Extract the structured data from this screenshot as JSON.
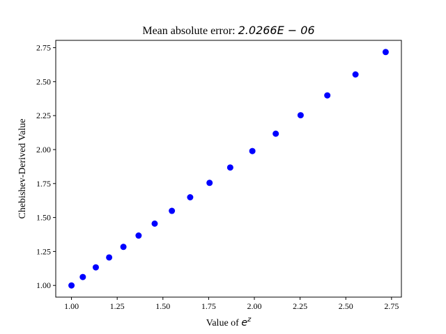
{
  "chart_data": {
    "type": "scatter",
    "title_text": "Mean absolute error: ",
    "title_math": "2.0266E − 06",
    "xlabel_text": "Value of ",
    "xlabel_math_base": "e",
    "xlabel_math_sup": "z",
    "ylabel": "Chebishev-Derived Value",
    "xlim": [
      0.914,
      2.804
    ],
    "ylim": [
      0.914,
      2.804
    ],
    "xticks": [
      1.0,
      1.25,
      1.5,
      1.75,
      2.0,
      2.25,
      2.5,
      2.75
    ],
    "yticks": [
      1.0,
      1.25,
      1.5,
      1.75,
      2.0,
      2.25,
      2.5,
      2.75
    ],
    "xtick_labels": [
      "1.00",
      "1.25",
      "1.50",
      "1.75",
      "2.00",
      "2.25",
      "2.50",
      "2.75"
    ],
    "ytick_labels": [
      "1.00",
      "1.25",
      "1.50",
      "1.75",
      "2.00",
      "2.25",
      "2.50",
      "2.75"
    ],
    "marker_color": "#0000ff",
    "grid": false,
    "x": [
      1.0,
      1.062,
      1.133,
      1.206,
      1.284,
      1.367,
      1.455,
      1.549,
      1.649,
      1.755,
      1.868,
      1.989,
      2.117,
      2.253,
      2.399,
      2.553,
      2.718
    ],
    "y": [
      1.0,
      1.062,
      1.133,
      1.206,
      1.284,
      1.367,
      1.455,
      1.549,
      1.649,
      1.755,
      1.868,
      1.989,
      2.117,
      2.253,
      2.399,
      2.553,
      2.718
    ]
  }
}
